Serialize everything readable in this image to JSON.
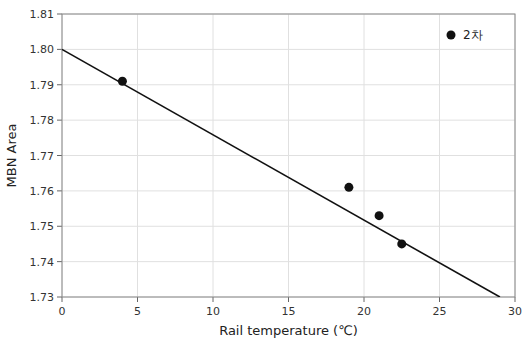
{
  "chart_data": {
    "type": "scatter",
    "x_label": "Rail temperature (℃)",
    "y_label": "MBN Area",
    "series": [
      {
        "name": "2차",
        "type": "scatter",
        "marker": "circle",
        "color": "#111111",
        "x": [
          4,
          19,
          21,
          22.5
        ],
        "values": [
          1.791,
          1.761,
          1.753,
          1.745
        ]
      },
      {
        "type": "line",
        "line_style": "solid",
        "color": "#111111",
        "x": [
          0,
          29
        ],
        "values": [
          1.8,
          1.73
        ]
      }
    ],
    "xlim": [
      0,
      30
    ],
    "ylim": [
      1.73,
      1.81
    ],
    "xticks": [
      0,
      5,
      10,
      15,
      20,
      25,
      30
    ],
    "yticks": [
      1.73,
      1.74,
      1.75,
      1.76,
      1.77,
      1.78,
      1.79,
      {
        "value": 1.8,
        "label": "1.80"
      },
      1.81
    ],
    "grid": true,
    "legend": "upper right"
  }
}
